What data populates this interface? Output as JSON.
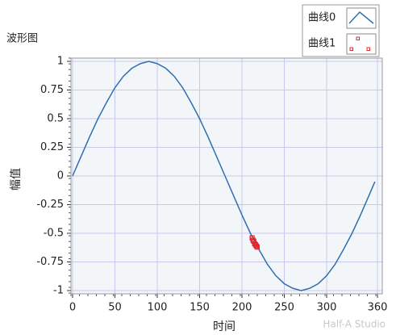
{
  "chart_data": {
    "type": "line",
    "title": "波形图",
    "xlabel": "时间",
    "ylabel": "幅值",
    "watermark": "Half-A Studio",
    "xlim": [
      0,
      360
    ],
    "ylim": [
      -1,
      1
    ],
    "xticks": [
      0,
      50,
      100,
      150,
      200,
      250,
      300,
      360
    ],
    "yticks": [
      1,
      0.75,
      0.5,
      0.25,
      0,
      -0.25,
      -0.5,
      -0.75,
      -1
    ],
    "grid": true,
    "series": [
      {
        "name": "曲线0",
        "color": "#2f6fb0",
        "style": "line",
        "x": [
          0,
          10,
          20,
          30,
          40,
          50,
          60,
          70,
          80,
          90,
          100,
          110,
          120,
          130,
          140,
          150,
          160,
          170,
          180,
          190,
          200,
          210,
          220,
          230,
          240,
          250,
          260,
          270,
          280,
          290,
          300,
          310,
          320,
          330,
          340,
          350,
          357
        ],
        "values": [
          0,
          0.17,
          0.34,
          0.5,
          0.64,
          0.77,
          0.87,
          0.94,
          0.98,
          1,
          0.98,
          0.94,
          0.87,
          0.77,
          0.64,
          0.5,
          0.34,
          0.17,
          0,
          -0.17,
          -0.34,
          -0.5,
          -0.64,
          -0.77,
          -0.87,
          -0.94,
          -0.98,
          -1,
          -0.98,
          -0.94,
          -0.87,
          -0.77,
          -0.64,
          -0.5,
          -0.34,
          -0.17,
          -0.05
        ]
      },
      {
        "name": "曲线1",
        "color": "#e0282e",
        "style": "points",
        "x": [
          212,
          213,
          214,
          215,
          216,
          217,
          218
        ],
        "values": [
          -0.54,
          -0.56,
          -0.57,
          -0.59,
          -0.6,
          -0.61,
          -0.62
        ]
      }
    ]
  }
}
